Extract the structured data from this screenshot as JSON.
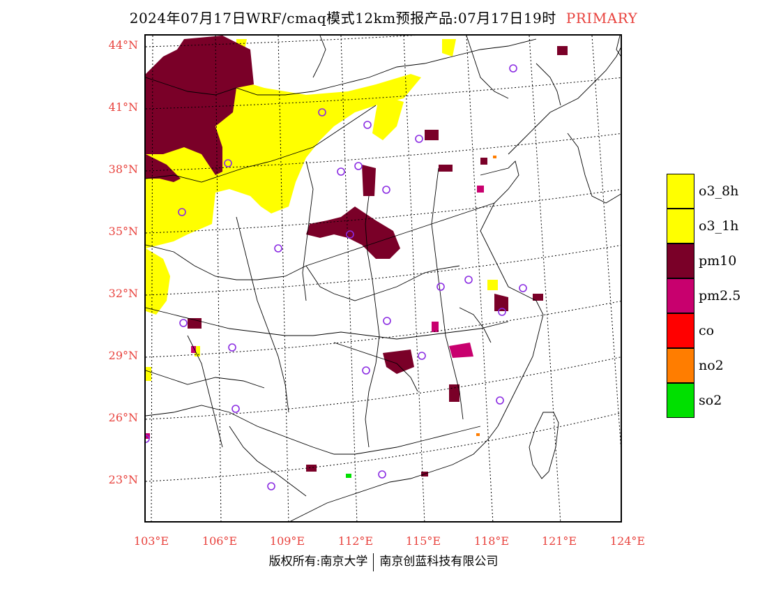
{
  "title": {
    "main": "2024年07月17日WRF/cmaq模式12km预报产品:07月17日19时",
    "tag": "PRIMARY"
  },
  "axes": {
    "lat_labels": [
      "44°N",
      "41°N",
      "38°N",
      "35°N",
      "32°N",
      "29°N",
      "26°N",
      "23°N"
    ],
    "lon_labels": [
      "103°E",
      "106°E",
      "109°E",
      "112°E",
      "115°E",
      "118°E",
      "121°E",
      "124°E"
    ]
  },
  "legend": [
    {
      "label": "o3_8h",
      "color": "#ffff00"
    },
    {
      "label": "o3_1h",
      "color": "#ffff00"
    },
    {
      "label": "pm10",
      "color": "#7a0028"
    },
    {
      "label": "pm2.5",
      "color": "#c8006e"
    },
    {
      "label": "co",
      "color": "#ff0000"
    },
    {
      "label": "no2",
      "color": "#ff7d00"
    },
    {
      "label": "so2",
      "color": "#00e000"
    }
  ],
  "colors": {
    "label_red": "#e8413c",
    "station_ring": "#8a2be2"
  },
  "footer": {
    "left": "版权所有:南京大学",
    "right": "南京创蓝科技有限公司"
  }
}
